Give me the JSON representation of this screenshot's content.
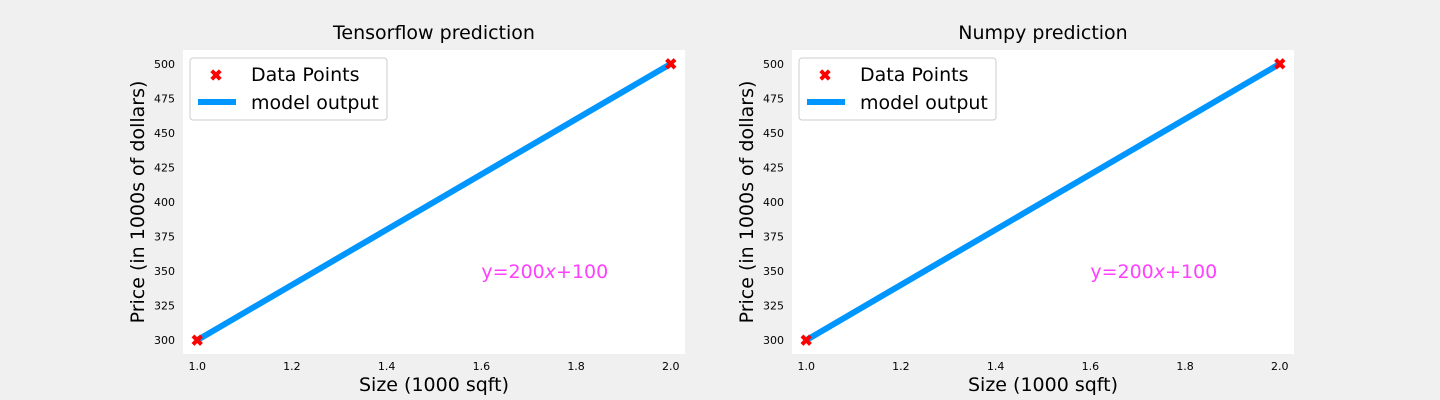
{
  "chart_data": [
    {
      "type": "scatter",
      "title": "Tensorflow prediction",
      "xlabel": "Size (1000 sqft)",
      "ylabel": "Price (in 1000s of dollars)",
      "xlim": [
        0.97,
        2.03
      ],
      "ylim": [
        290,
        510
      ],
      "xticks": [
        1.0,
        1.2,
        1.4,
        1.6,
        1.8,
        2.0
      ],
      "xtick_labels": [
        "1.0",
        "1.2",
        "1.4",
        "1.6",
        "1.8",
        "2.0"
      ],
      "yticks": [
        300,
        325,
        350,
        375,
        400,
        425,
        450,
        475,
        500
      ],
      "ytick_labels": [
        "300",
        "325",
        "350",
        "375",
        "400",
        "425",
        "450",
        "475",
        "500"
      ],
      "grid": false,
      "legend_position": "top-left",
      "series": [
        {
          "name": "Data Points",
          "kind": "scatter",
          "marker": "X",
          "color": "#ff0000",
          "x": [
            1.0,
            2.0
          ],
          "y": [
            300,
            500
          ]
        },
        {
          "name": "model output",
          "kind": "line",
          "color": "#0096ff",
          "x": [
            1.0,
            2.0
          ],
          "y": [
            300,
            500
          ]
        }
      ],
      "annotation": {
        "text": "y=200x+100",
        "parts": [
          "y=200",
          "x",
          "+100"
        ],
        "x": 1.6,
        "y": 350,
        "color": "#ff40ff"
      }
    },
    {
      "type": "scatter",
      "title": "Numpy prediction",
      "xlabel": "Size (1000 sqft)",
      "ylabel": "Price (in 1000s of dollars)",
      "xlim": [
        0.97,
        2.03
      ],
      "ylim": [
        290,
        510
      ],
      "xticks": [
        1.0,
        1.2,
        1.4,
        1.6,
        1.8,
        2.0
      ],
      "xtick_labels": [
        "1.0",
        "1.2",
        "1.4",
        "1.6",
        "1.8",
        "2.0"
      ],
      "yticks": [
        300,
        325,
        350,
        375,
        400,
        425,
        450,
        475,
        500
      ],
      "ytick_labels": [
        "300",
        "325",
        "350",
        "375",
        "400",
        "425",
        "450",
        "475",
        "500"
      ],
      "grid": false,
      "legend_position": "top-left",
      "series": [
        {
          "name": "Data Points",
          "kind": "scatter",
          "marker": "X",
          "color": "#ff0000",
          "x": [
            1.0,
            2.0
          ],
          "y": [
            300,
            500
          ]
        },
        {
          "name": "model output",
          "kind": "line",
          "color": "#0096ff",
          "x": [
            1.0,
            2.0
          ],
          "y": [
            300,
            500
          ]
        }
      ],
      "annotation": {
        "text": "y=200x+100",
        "parts": [
          "y=200",
          "x",
          "+100"
        ],
        "x": 1.6,
        "y": 350,
        "color": "#ff40ff"
      }
    }
  ]
}
